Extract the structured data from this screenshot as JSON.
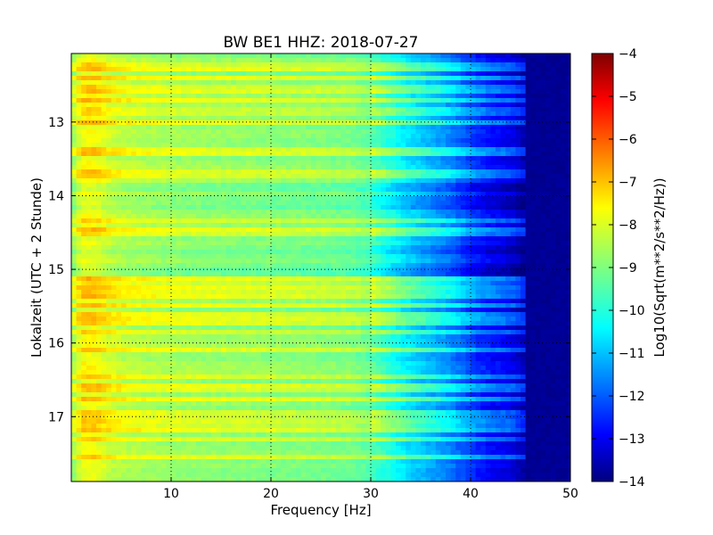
{
  "chart_data": {
    "type": "heatmap",
    "title": "BW BE1 HHZ: 2018-07-27",
    "xlabel": "Frequency [Hz]",
    "ylabel": "Lokalzeit (UTC + 2 Stunde)",
    "xlim": [
      0,
      50
    ],
    "ylim": [
      12.07,
      17.88
    ],
    "y_inverted": true,
    "x_ticks": [
      10,
      20,
      30,
      40,
      50
    ],
    "y_ticks": [
      13,
      14,
      15,
      16,
      17
    ],
    "grid": true,
    "colormap": "jet",
    "colorbar": {
      "label": "Log10(Sqrt(m**2/s**2/Hz))",
      "min": -14,
      "max": -4,
      "ticks": [
        -4,
        -5,
        -6,
        -7,
        -8,
        -9,
        -10,
        -11,
        -12,
        -13,
        -14
      ]
    },
    "spectrum_profile": {
      "frequency_hz": [
        0,
        1,
        2,
        3,
        4,
        6,
        8,
        10,
        15,
        20,
        25,
        28,
        30,
        32,
        34,
        36,
        38,
        40,
        42,
        44,
        45.5,
        50
      ],
      "log_psd": [
        -8.9,
        -7.9,
        -7.8,
        -8.0,
        -8.3,
        -8.5,
        -8.6,
        -8.7,
        -8.8,
        -8.9,
        -9.0,
        -9.1,
        -9.4,
        -10.0,
        -10.6,
        -11.0,
        -11.5,
        -12.2,
        -12.7,
        -13.0,
        -13.6,
        -13.8
      ]
    },
    "bright_bands_hours": [
      12.25,
      12.4,
      12.55,
      12.7,
      12.85,
      13.0,
      13.4,
      13.7,
      14.35,
      14.5,
      14.95,
      15.1,
      15.2,
      15.35,
      15.5,
      15.6,
      15.7,
      15.85,
      16.1,
      16.45,
      16.6,
      16.75,
      16.95,
      17.05,
      17.15,
      17.3,
      17.55
    ],
    "quiet_zones_hours": [
      13.9,
      14.1,
      14.75,
      15.0
    ]
  }
}
